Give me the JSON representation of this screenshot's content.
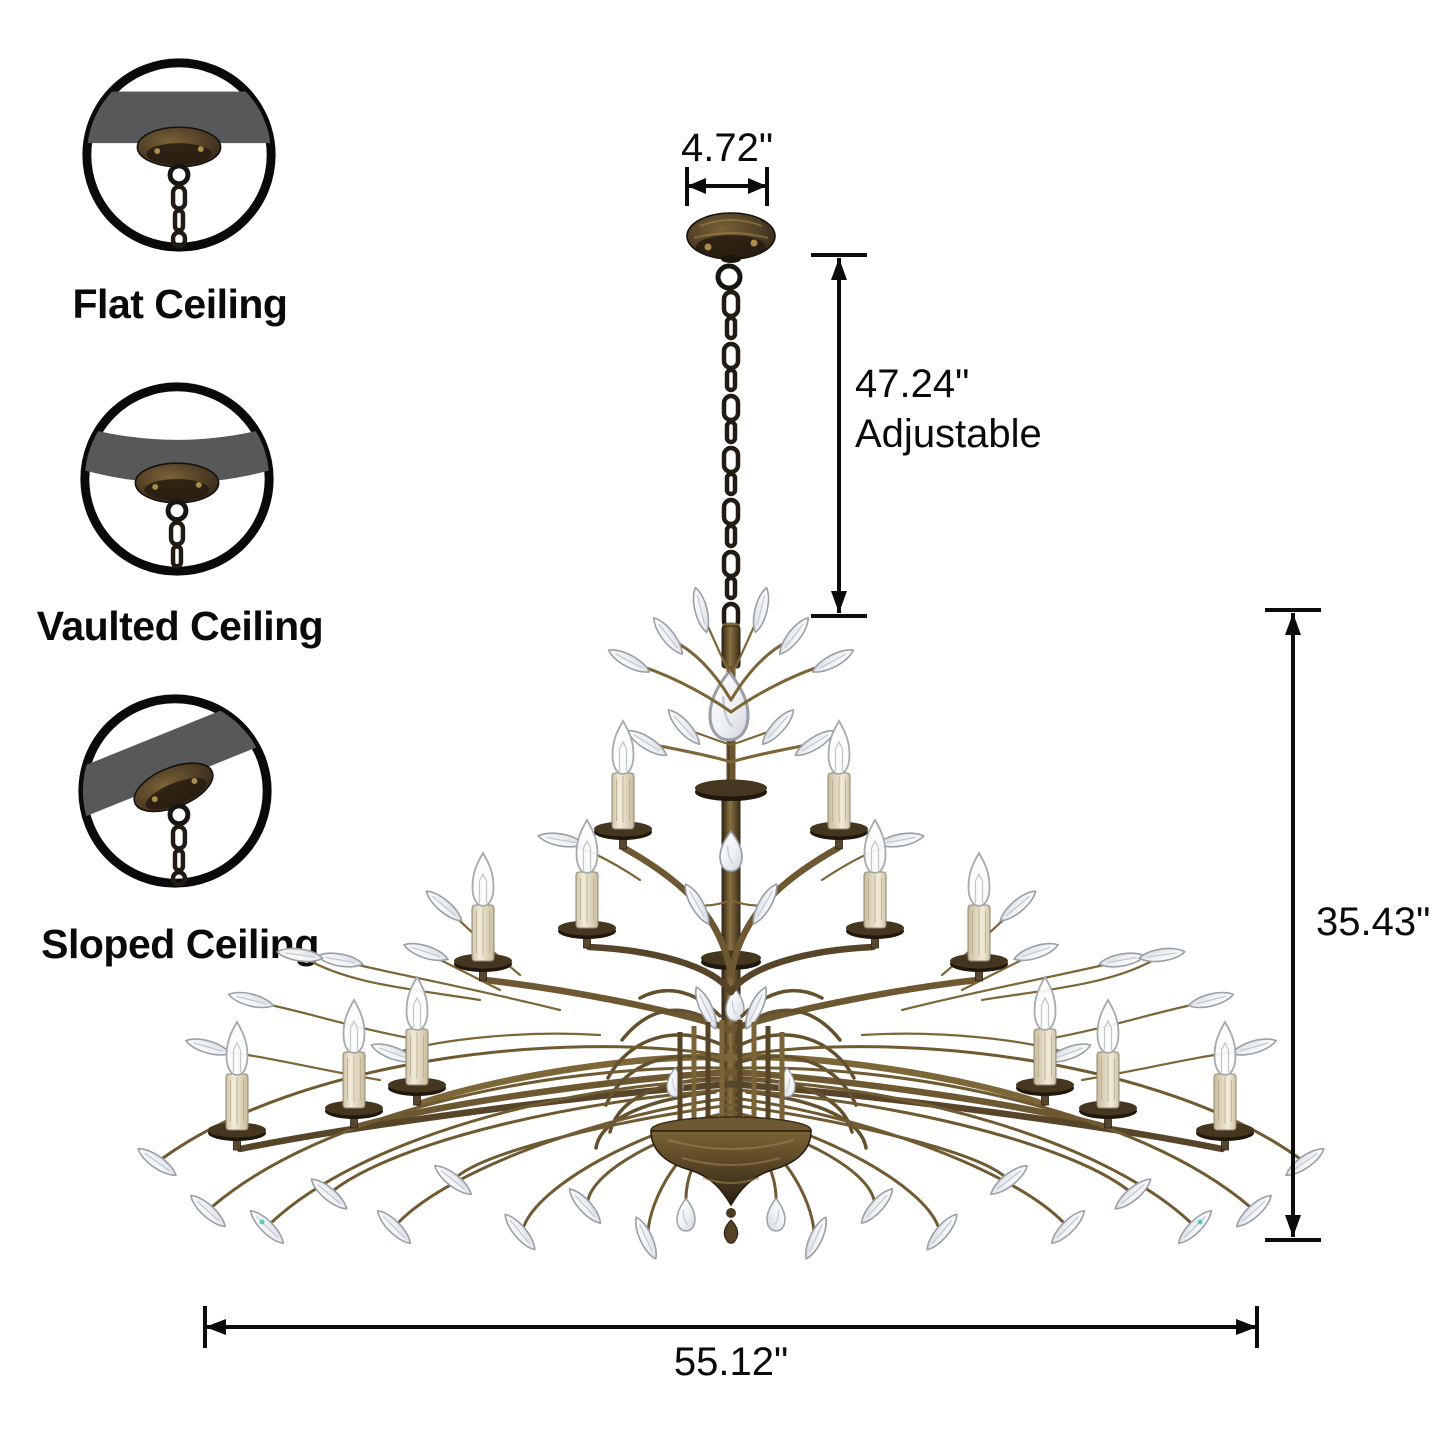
{
  "figure": {
    "name": "crystal-branch-chandelier",
    "style": "antique bronze branch chandelier with crystal leaves and candle lights"
  },
  "mounting": {
    "options": [
      {
        "icon": "flat-ceiling-icon",
        "label": "Flat Ceiling"
      },
      {
        "icon": "vaulted-ceiling-icon",
        "label": "Vaulted Ceiling"
      },
      {
        "icon": "sloped-ceiling-icon",
        "label": "Sloped Ceiling"
      }
    ]
  },
  "dimensions": {
    "canopy_width": "4.72\"",
    "chain": {
      "length": "47.24\"",
      "note": "Adjustable"
    },
    "height": "35.43\"",
    "width": "55.12\""
  },
  "colors": {
    "background": "#ffffff",
    "dimension_line": "#0b0b0b",
    "ceiling_band": "#57585a",
    "bronze": "#6d5832",
    "crystal": "#e9ecf0"
  }
}
